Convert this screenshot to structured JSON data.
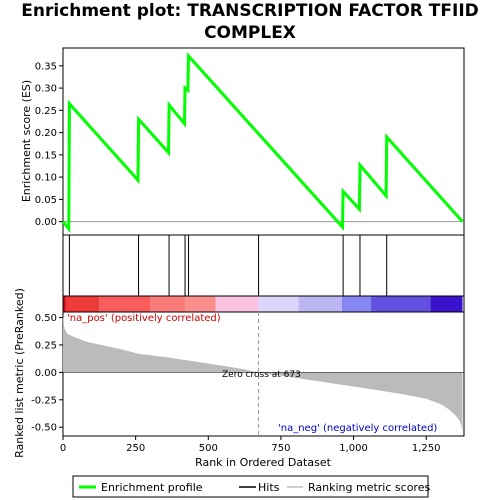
{
  "chart_data": {
    "type": "line",
    "title": "Enrichment plot: TRANSCRIPTION FACTOR TFIID COMPLEX",
    "xlabel": "Rank in Ordered Dataset",
    "ylabel_top": "Enrichment score (ES)",
    "ylabel_bottom": "Ranked list metric (PreRanked)",
    "x_range": [
      0,
      1380
    ],
    "x_ticks": [
      0,
      250,
      500,
      750,
      1000,
      1250
    ],
    "x_tick_labels": [
      "0",
      "250",
      "500",
      "750",
      "1,000",
      "1,250"
    ],
    "es_ylim": [
      -0.03,
      0.39
    ],
    "es_ticks": [
      0.0,
      0.05,
      0.1,
      0.15,
      0.2,
      0.25,
      0.3,
      0.35
    ],
    "es_tick_labels": [
      "0.00",
      "0.05",
      "0.10",
      "0.15",
      "0.20",
      "0.25",
      "0.30",
      "0.35"
    ],
    "metric_ylim": [
      -0.58,
      0.55
    ],
    "metric_ticks": [
      0.5,
      0.25,
      0.0,
      -0.25,
      -0.5
    ],
    "metric_tick_labels": [
      "0.50",
      "0.25",
      "0.00",
      "-0.25",
      "-0.50"
    ],
    "series": [
      {
        "name": "Enrichment profile",
        "color": "#00ff00",
        "x": [
          0,
          20,
          22,
          258,
          260,
          363,
          365,
          418,
          420,
          430,
          432,
          962,
          964,
          1020,
          1022,
          1112,
          1114,
          1375
        ],
        "y": [
          0.0,
          -0.016,
          0.265,
          0.093,
          0.23,
          0.155,
          0.262,
          0.22,
          0.3,
          0.295,
          0.372,
          -0.012,
          0.068,
          0.028,
          0.127,
          0.058,
          0.19,
          0.0
        ]
      },
      {
        "name": "Hits",
        "color": "#000000",
        "positions": [
          22,
          260,
          365,
          420,
          432,
          673,
          964,
          1022,
          1114
        ]
      },
      {
        "name": "Ranking metric scores",
        "color": "#bbbbbb",
        "x": [
          0,
          5,
          15,
          40,
          80,
          130,
          200,
          260,
          350,
          450,
          550,
          620,
          673,
          750,
          850,
          950,
          1050,
          1150,
          1250,
          1300,
          1330,
          1350,
          1365,
          1372,
          1375
        ],
        "y": [
          0.52,
          0.4,
          0.35,
          0.32,
          0.28,
          0.25,
          0.21,
          0.17,
          0.14,
          0.1,
          0.06,
          0.03,
          0.0,
          -0.03,
          -0.07,
          -0.11,
          -0.15,
          -0.19,
          -0.24,
          -0.29,
          -0.34,
          -0.39,
          -0.44,
          -0.5,
          -0.55
        ]
      }
    ],
    "heatmap_bands": [
      {
        "from": 0,
        "to": 10,
        "color": "#d20a1e"
      },
      {
        "from": 10,
        "to": 125,
        "color": "#ef3a3a"
      },
      {
        "from": 125,
        "to": 300,
        "color": "#f85c5c"
      },
      {
        "from": 300,
        "to": 420,
        "color": "#fb7a7a"
      },
      {
        "from": 420,
        "to": 525,
        "color": "#fc8e8e"
      },
      {
        "from": 525,
        "to": 673,
        "color": "#fbc2e0"
      },
      {
        "from": 673,
        "to": 810,
        "color": "#dcd6f8"
      },
      {
        "from": 810,
        "to": 960,
        "color": "#bdb6f4"
      },
      {
        "from": 960,
        "to": 1060,
        "color": "#8686f0"
      },
      {
        "from": 1060,
        "to": 1265,
        "color": "#6352e2"
      },
      {
        "from": 1265,
        "to": 1375,
        "color": "#3a12cc"
      }
    ],
    "zero_cross": 673,
    "annotations": {
      "pos_label": "'na_pos' (positively correlated)",
      "neg_label": "'na_neg' (negatively correlated)",
      "zero_label": "Zero cross at 673"
    },
    "legend": {
      "placement": "bottom",
      "items": [
        "Enrichment profile",
        "Hits",
        "Ranking metric scores"
      ]
    }
  }
}
